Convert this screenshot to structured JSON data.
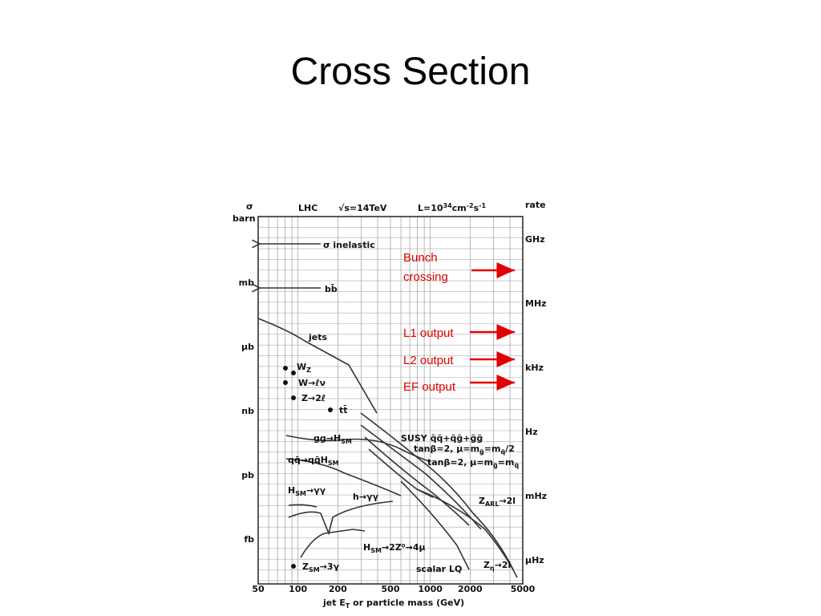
{
  "title": "Cross Section",
  "figure": {
    "header": {
      "sigma": "σ",
      "unit": "barn",
      "collider": "LHC",
      "energy": "√s=14TeV",
      "luminosity": [
        "L=10",
        "34",
        "cm",
        "-2",
        "s",
        "-1"
      ],
      "rate": "rate"
    },
    "left_labels": [
      "mb",
      "μb",
      "nb",
      "pb",
      "fb"
    ],
    "right_labels": [
      "GHz",
      "MHz",
      "kHz",
      "Hz",
      "mHz",
      "μHz"
    ],
    "x_labels": [
      "50",
      "100",
      "200",
      "500",
      "1000",
      "2000",
      "5000"
    ],
    "x_title": [
      "jet E",
      "T",
      " or particle mass (GeV)"
    ],
    "annotations": [
      {
        "parts": [
          "σ inelastic"
        ]
      },
      {
        "parts": [
          "bb̄"
        ]
      },
      {
        "parts": [
          "jets"
        ]
      },
      {
        "parts": [
          "W",
          "Z"
        ]
      },
      {
        "parts": [
          "W→ℓν"
        ]
      },
      {
        "parts": [
          "Z→2ℓ"
        ]
      },
      {
        "parts": [
          "tt̄"
        ]
      },
      {
        "parts": [
          "gg→H",
          "SM"
        ]
      },
      {
        "parts": [
          "SUSY q̃q̃+q̃g̃+g̃g̃"
        ]
      },
      {
        "parts": [
          "tanβ=2, μ=m",
          "g̃",
          "=m",
          "q̃",
          "/2"
        ]
      },
      {
        "parts": [
          "qq̄→qq̄H",
          "SM"
        ]
      },
      {
        "parts": [
          "tanβ=2, μ=m",
          "g̃",
          "=m",
          "q̃"
        ]
      },
      {
        "parts": [
          "H",
          "SM",
          "→γγ"
        ]
      },
      {
        "parts": [
          "h→γγ"
        ]
      },
      {
        "parts": [
          "Z",
          "ARL",
          "→2l"
        ]
      },
      {
        "parts": [
          "H",
          "SM",
          "→2Z⁰→4μ"
        ]
      },
      {
        "parts": [
          "Z",
          "SM",
          "→3γ"
        ]
      },
      {
        "parts": [
          "scalar LQ"
        ]
      },
      {
        "parts": [
          "Z",
          "η",
          "→2l"
        ]
      }
    ]
  },
  "triggers": [
    [
      "Bunch",
      "crossing"
    ],
    [
      "L1 output"
    ],
    [
      "L2 output"
    ],
    [
      "EF output"
    ]
  ]
}
